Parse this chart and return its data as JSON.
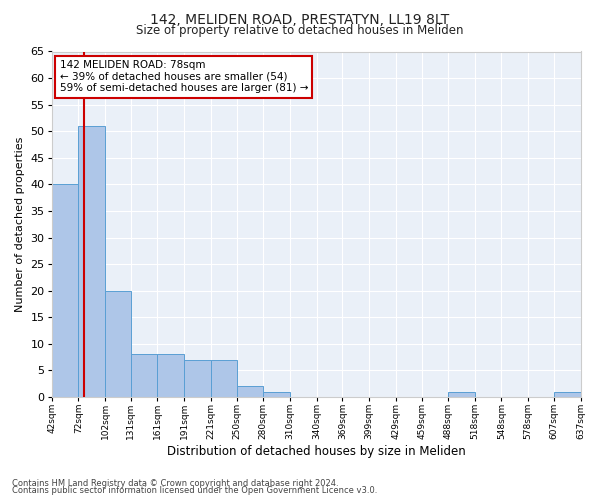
{
  "title_line1": "142, MELIDEN ROAD, PRESTATYN, LL19 8LT",
  "title_line2": "Size of property relative to detached houses in Meliden",
  "xlabel": "Distribution of detached houses by size in Meliden",
  "ylabel": "Number of detached properties",
  "bin_edges": [
    42,
    72,
    102,
    131,
    161,
    191,
    221,
    250,
    280,
    310,
    340,
    369,
    399,
    429,
    459,
    488,
    518,
    548,
    578,
    607,
    637
  ],
  "bar_heights": [
    40,
    51,
    20,
    8,
    8,
    7,
    7,
    2,
    1,
    0,
    0,
    0,
    0,
    0,
    0,
    1,
    0,
    0,
    0,
    1
  ],
  "bar_color": "#aec6e8",
  "bar_edge_color": "#5a9fd4",
  "property_line_x": 78,
  "property_line_color": "#cc0000",
  "annotation_text": "142 MELIDEN ROAD: 78sqm\n← 39% of detached houses are smaller (54)\n59% of semi-detached houses are larger (81) →",
  "annotation_box_color": "#ffffff",
  "annotation_box_edge_color": "#cc0000",
  "ylim": [
    0,
    65
  ],
  "yticks": [
    0,
    5,
    10,
    15,
    20,
    25,
    30,
    35,
    40,
    45,
    50,
    55,
    60,
    65
  ],
  "bg_color": "#eaf0f8",
  "grid_color": "#ffffff",
  "footer_line1": "Contains HM Land Registry data © Crown copyright and database right 2024.",
  "footer_line2": "Contains public sector information licensed under the Open Government Licence v3.0.",
  "tick_labels": [
    "42sqm",
    "72sqm",
    "102sqm",
    "131sqm",
    "161sqm",
    "191sqm",
    "221sqm",
    "250sqm",
    "280sqm",
    "310sqm",
    "340sqm",
    "369sqm",
    "399sqm",
    "429sqm",
    "459sqm",
    "488sqm",
    "518sqm",
    "548sqm",
    "578sqm",
    "607sqm",
    "637sqm"
  ],
  "title1_fontsize": 10,
  "title2_fontsize": 8.5,
  "ylabel_fontsize": 8,
  "xlabel_fontsize": 8.5,
  "annotation_fontsize": 7.5,
  "ytick_fontsize": 8,
  "xtick_fontsize": 6.5,
  "footer_fontsize": 6
}
